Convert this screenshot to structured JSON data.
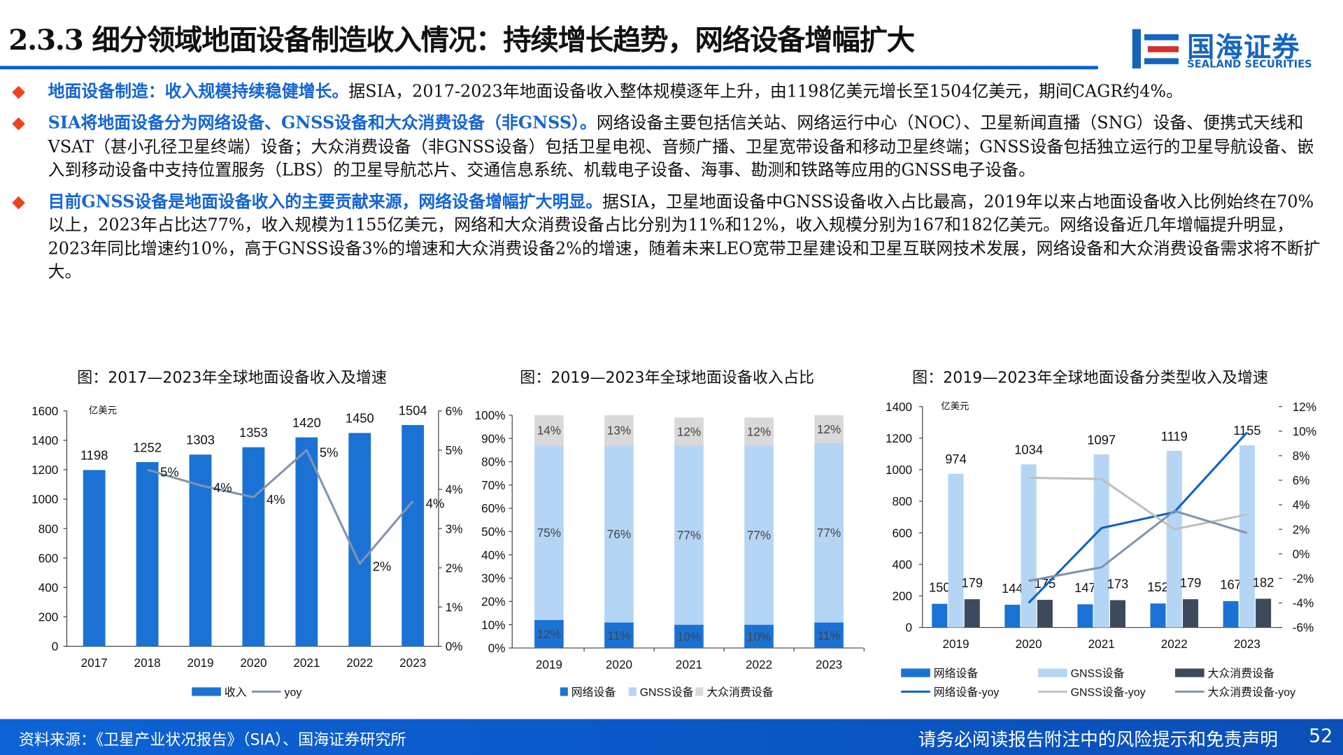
{
  "header": {
    "title": "2.3.3 细分领域地面设备制造收入情况：持续增长趋势，网络设备增幅扩大",
    "logo_cn": "国海证券",
    "logo_en": "SEALAND SECURITIES"
  },
  "bullets": [
    {
      "highlight": "地面设备制造：收入规模持续稳健增长。",
      "text": "据SIA，2017-2023年地面设备收入整体规模逐年上升，由1198亿美元增长至1504亿美元，期间CAGR约4%。"
    },
    {
      "highlight": "SIA将地面设备分为网络设备、GNSS设备和大众消费设备（非GNSS）。",
      "text": "网络设备主要包括信关站、网络运行中心（NOC）、卫星新闻直播（SNG）设备、便携式天线和VSAT（甚小孔径卫星终端）设备；大众消费设备（非GNSS设备）包括卫星电视、音频广播、卫星宽带设备和移动卫星终端；GNSS设备包括独立运行的卫星导航设备、嵌入到移动设备中支持位置服务（LBS）的卫星导航芯片、交通信息系统、机载电子设备、海事、勘测和铁路等应用的GNSS电子设备。"
    },
    {
      "highlight": "目前GNSS设备是地面设备收入的主要贡献来源，网络设备增幅扩大明显。",
      "text": "据SIA，卫星地面设备中GNSS设备收入占比最高，2019年以来占地面设备收入比例始终在70%以上，2023年占比达77%，收入规模为1155亿美元，网络和大众消费设备占比分别为11%和12%，收入规模分别为167和182亿美元。网络设备近几年增幅提升明显，2023年同比增速约10%，高于GNSS设备3%的增速和大众消费设备2%的增速，随着未来LEO宽带卫星建设和卫星互联网技术发展，网络设备和大众消费设备需求将不断扩大。"
    }
  ],
  "footer": {
    "source": "资料来源：《卫星产业状况报告》（SIA）、国海证券研究所",
    "disclaimer": "请务必阅读报告附注中的风险提示和免责声明",
    "page": "52"
  },
  "colors": {
    "bar": "#1a73d4",
    "light": "#b5d5f5",
    "grey": "#d9d9d9",
    "dark": "#3d4a5c",
    "line": "#8294ac",
    "gnssline": "#bfbfbf",
    "netline": "#0b62c4"
  },
  "chart_data": [
    {
      "type": "bar",
      "title": "图：2017—2023年全球地面设备收入及增速",
      "unit": "亿美元",
      "categories": [
        "2017",
        "2018",
        "2019",
        "2020",
        "2021",
        "2022",
        "2023"
      ],
      "ylim": [
        0,
        1600
      ],
      "yticks": [
        "0",
        "200",
        "400",
        "600",
        "800",
        "1000",
        "1200",
        "1400",
        "1600"
      ],
      "y2lim": [
        0,
        6
      ],
      "y2ticks": [
        "0%",
        "1%",
        "2%",
        "3%",
        "4%",
        "5%",
        "6%"
      ],
      "series": [
        {
          "name": "收入",
          "values": [
            1198,
            1252,
            1303,
            1353,
            1420,
            1450,
            1504
          ],
          "labels": [
            "1198",
            "1252",
            "1303",
            "1353",
            "1420",
            "1450",
            "1504"
          ]
        },
        {
          "name": "yoy",
          "axis": "right",
          "values": [
            null,
            4.5,
            4.1,
            3.8,
            5.0,
            2.1,
            3.7
          ],
          "labels": [
            "",
            "5%",
            "4%",
            "4%",
            "5%",
            "2%",
            "4%"
          ]
        }
      ]
    },
    {
      "type": "bar",
      "stacked": true,
      "title": "图：2019—2023年全球地面设备收入占比",
      "categories": [
        "2019",
        "2020",
        "2021",
        "2022",
        "2023"
      ],
      "ylim": [
        0,
        100
      ],
      "yticks": [
        "0%",
        "10%",
        "20%",
        "30%",
        "40%",
        "50%",
        "60%",
        "70%",
        "80%",
        "90%",
        "100%"
      ],
      "series": [
        {
          "name": "网络设备",
          "values": [
            12,
            11,
            10,
            10,
            11
          ]
        },
        {
          "name": "GNSS设备",
          "values": [
            75,
            76,
            77,
            77,
            77
          ]
        },
        {
          "name": "大众消费设备",
          "values": [
            14,
            13,
            12,
            12,
            12
          ]
        }
      ]
    },
    {
      "type": "bar",
      "title": "图：2019—2023年全球地面设备分类型收入及增速",
      "unit": "亿美元",
      "categories": [
        "2019",
        "2020",
        "2021",
        "2022",
        "2023"
      ],
      "ylim": [
        0,
        1400
      ],
      "yticks": [
        "0",
        "200",
        "400",
        "600",
        "800",
        "1000",
        "1200",
        "1400"
      ],
      "y2lim": [
        -6,
        12
      ],
      "y2ticks": [
        "-6%",
        "-4%",
        "-2%",
        "0%",
        "2%",
        "4%",
        "6%",
        "8%",
        "10%",
        "12%"
      ],
      "series": [
        {
          "name": "网络设备",
          "values": [
            150,
            144,
            147,
            152,
            167
          ]
        },
        {
          "name": "GNSS设备",
          "values": [
            974,
            1034,
            1097,
            1119,
            1155
          ]
        },
        {
          "name": "大众消费设备",
          "values": [
            179,
            175,
            173,
            179,
            182
          ]
        },
        {
          "name": "网络设备-yoy",
          "axis": "right",
          "values": [
            null,
            -4.0,
            2.1,
            3.4,
            9.9
          ]
        },
        {
          "name": "GNSS设备-yoy",
          "axis": "right",
          "values": [
            null,
            6.2,
            6.1,
            2.0,
            3.2
          ]
        },
        {
          "name": "大众消费设备-yoy",
          "axis": "right",
          "values": [
            null,
            -2.2,
            -1.1,
            3.5,
            1.7
          ]
        }
      ]
    }
  ]
}
